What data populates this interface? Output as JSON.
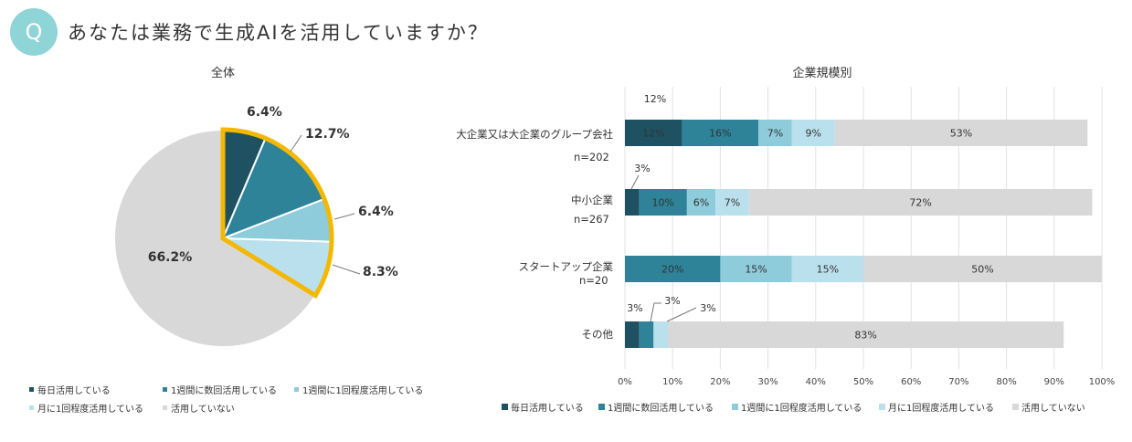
{
  "header": {
    "badge": "Q",
    "question": "あなたは業務で生成AIを活用していますか？"
  },
  "colors": {
    "daily": "#1e5262",
    "weekly_multi": "#2e8399",
    "weekly_once": "#8ecbdb",
    "monthly": "#b9e0ec",
    "not_using": "#d8d8d8",
    "highlight": "#f5b800"
  },
  "legend": [
    {
      "key": "daily",
      "label": "毎日活用している"
    },
    {
      "key": "weekly_multi",
      "label": "1週間に数回活用している"
    },
    {
      "key": "weekly_once",
      "label": "1週間に1回程度活用している"
    },
    {
      "key": "monthly",
      "label": "月に1回程度活用している"
    },
    {
      "key": "not_using",
      "label": "活用していない"
    }
  ],
  "chart_data": [
    {
      "type": "pie",
      "title": "全体",
      "slices": [
        {
          "key": "daily",
          "label": "毎日活用している",
          "value": 6.4,
          "value_label": "6.4%"
        },
        {
          "key": "weekly_multi",
          "label": "1週間に数回活用している",
          "value": 12.7,
          "value_label": "12.7%"
        },
        {
          "key": "weekly_once",
          "label": "1週間に1回程度活用している",
          "value": 6.4,
          "value_label": "6.4%"
        },
        {
          "key": "monthly",
          "label": "月に1回程度活用している",
          "value": 8.3,
          "value_label": "8.3%"
        },
        {
          "key": "not_using",
          "label": "活用していない",
          "value": 66.2,
          "value_label": "66.2%"
        }
      ],
      "highlighted_keys": [
        "daily",
        "weekly_multi",
        "weekly_once",
        "monthly"
      ]
    },
    {
      "type": "bar",
      "orientation": "horizontal",
      "stacked": true,
      "title": "企業規模別",
      "categories": [
        {
          "name": "大企業又は大企業のグループ会社",
          "n": "n=202"
        },
        {
          "name": "中小企業",
          "n": "n=267"
        },
        {
          "name": "スタートアップ企業",
          "n": "n=20"
        },
        {
          "name": "その他",
          "n": ""
        }
      ],
      "series": [
        {
          "key": "daily",
          "name": "毎日活用している",
          "values": [
            12,
            3,
            0,
            3
          ],
          "labels": [
            "12%",
            "3%",
            "",
            "3%"
          ]
        },
        {
          "key": "weekly_multi",
          "name": "1週間に数回活用している",
          "values": [
            16,
            10,
            20,
            3
          ],
          "labels": [
            "16%",
            "10%",
            "20%",
            "3%"
          ]
        },
        {
          "key": "weekly_once",
          "name": "1週間に1回程度活用している",
          "values": [
            7,
            6,
            15,
            0
          ],
          "labels": [
            "7%",
            "6%",
            "15%",
            ""
          ]
        },
        {
          "key": "monthly",
          "name": "月に1回程度活用している",
          "values": [
            9,
            7,
            15,
            3
          ],
          "labels": [
            "9%",
            "7%",
            "15%",
            "3%"
          ]
        },
        {
          "key": "not_using",
          "name": "活用していない",
          "values": [
            53,
            72,
            50,
            83
          ],
          "labels": [
            "53%",
            "72%",
            "50%",
            "83%"
          ]
        }
      ],
      "xlim": [
        0,
        100
      ],
      "xticks": [
        "0%",
        "10%",
        "20%",
        "30%",
        "40%",
        "50%",
        "60%",
        "70%",
        "80%",
        "90%",
        "100%"
      ],
      "grid": true
    }
  ]
}
